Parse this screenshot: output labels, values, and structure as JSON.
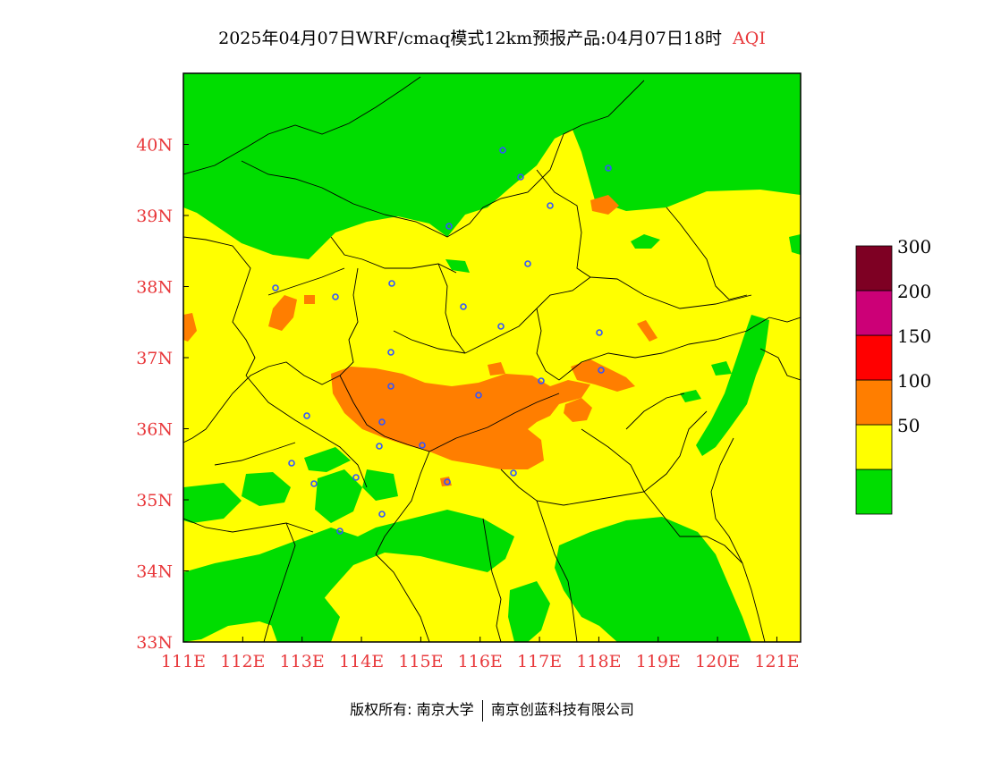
{
  "header": {
    "title": "2025年04月07日WRF/cmaq模式12km预报产品:04月07日18时",
    "variable": "AQI"
  },
  "map": {
    "lon_labels": [
      "111E",
      "112E",
      "113E",
      "114E",
      "115E",
      "116E",
      "117E",
      "118E",
      "119E",
      "120E",
      "121E"
    ],
    "lat_labels": [
      "33N",
      "34N",
      "35N",
      "36N",
      "37N",
      "38N",
      "39N",
      "40N"
    ],
    "lon_range": [
      111,
      121.4
    ],
    "lat_range": [
      33,
      41
    ],
    "colors": {
      "good": "#00dd00",
      "moderate": "#ffff00",
      "unhealthy_sensitive": "#ff7e00",
      "unhealthy": "#ff0000",
      "very_unhealthy": "#cc0077",
      "hazardous": "#7e0023"
    }
  },
  "colorbar": {
    "levels": [
      {
        "label": "",
        "color": "#00dd00"
      },
      {
        "label": "50",
        "color": "#ffff00"
      },
      {
        "label": "100",
        "color": "#ff7e00"
      },
      {
        "label": "150",
        "color": "#ff0000"
      },
      {
        "label": "200",
        "color": "#cc0077"
      },
      {
        "label": "300",
        "color": "#7e0023"
      }
    ]
  },
  "footer": {
    "copyright_prefix": "版权所有:",
    "org1": "南京大学",
    "org2": "南京创蓝科技有限公司"
  }
}
